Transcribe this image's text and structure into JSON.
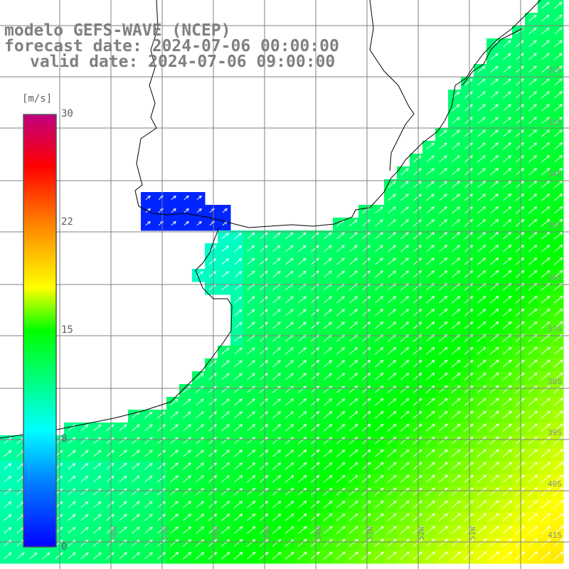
{
  "title": {
    "line1": "modelo GEFS-WAVE (NCEP)",
    "line2": "forecast date: 2024-07-06 00:00:00",
    "line3": "valid date: 2024-07-06 09:00:00"
  },
  "colorbar": {
    "unit": "[m/s]",
    "labels": [
      "30",
      "22",
      "15",
      "8",
      "0"
    ],
    "range": [
      0,
      30
    ],
    "gradient": [
      "#0000ff",
      "#00a0ff",
      "#00ffff",
      "#00ff00",
      "#ffff00",
      "#ff8000",
      "#ff0000",
      "#c00080"
    ]
  },
  "axes": {
    "lat_labels": [
      "32S",
      "33S",
      "34S",
      "35S",
      "36S",
      "37S",
      "38S",
      "39S",
      "40S",
      "41S"
    ],
    "lon_labels": [
      "58W",
      "57W",
      "56W",
      "55W",
      "54W",
      "53W",
      "52W",
      "51W"
    ]
  },
  "colors": {
    "land": "#ffffff",
    "grid": "#808080",
    "coast": "#000000",
    "arrow": "#ffffff",
    "title": "#808080"
  },
  "chart_data": {
    "type": "heatmap",
    "variable": "wind speed",
    "unit": "m/s",
    "vmin": 0,
    "vmax": 30,
    "approx_direction": "from southwest (vectors pointing northeast)",
    "speed_range_observed": [
      4,
      18
    ]
  }
}
